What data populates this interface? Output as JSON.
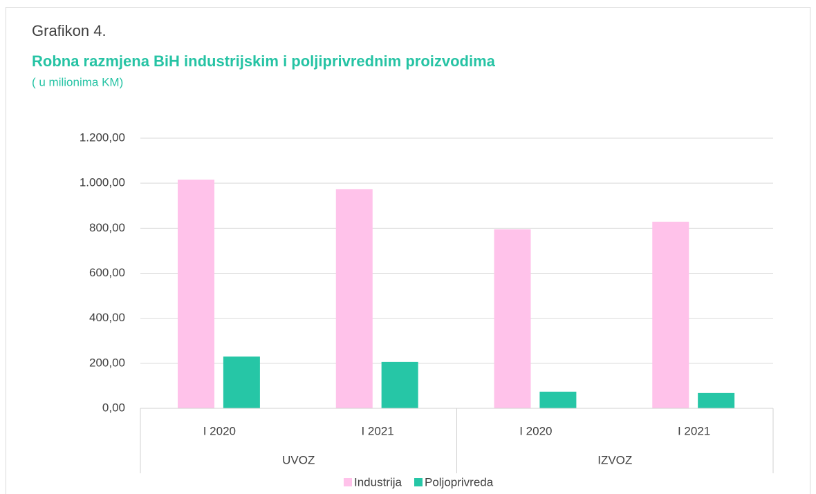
{
  "chart_data": {
    "type": "bar",
    "label": "Grafikon 4.",
    "title": "Robna razmjena BiH industrijskim i poljiprivrednim proizvodima",
    "subtitle": "( u milionima KM)",
    "categories": [
      "I 2020",
      "I 2021",
      "I 2020",
      "I 2021"
    ],
    "groups": [
      "UVOZ",
      "IZVOZ"
    ],
    "series": [
      {
        "name": "Industrija",
        "color": "#ffc2ea",
        "values": [
          1016,
          973,
          795,
          829
        ]
      },
      {
        "name": "Poljoprivreda",
        "color": "#26c6a6",
        "values": [
          230,
          206,
          74,
          68
        ]
      }
    ],
    "ylim": [
      0,
      1200
    ],
    "yticks": [
      {
        "value": 0,
        "label": "0,00"
      },
      {
        "value": 200,
        "label": "200,00"
      },
      {
        "value": 400,
        "label": "400,00"
      },
      {
        "value": 600,
        "label": "600,00"
      },
      {
        "value": 800,
        "label": "800,00"
      },
      {
        "value": 1000,
        "label": "1.000,00"
      },
      {
        "value": 1200,
        "label": "1.200,00"
      }
    ],
    "grid": true,
    "legend": "bottom"
  }
}
